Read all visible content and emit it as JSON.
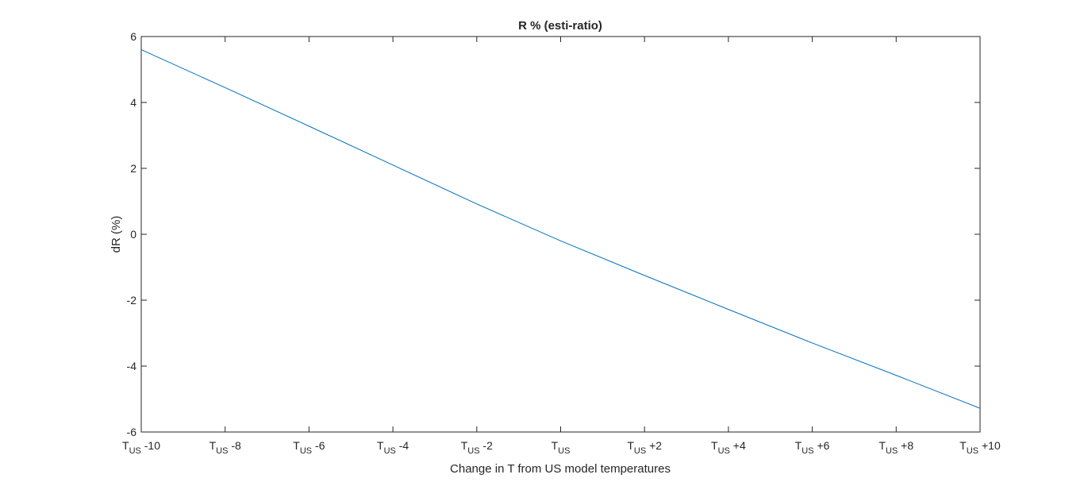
{
  "chart_data": {
    "type": "line",
    "title": "R % (esti-ratio)",
    "xlabel": "Change in T from US model temperatures",
    "ylabel": "dR (%)",
    "xlim": [
      -10,
      10
    ],
    "ylim": [
      -6,
      6
    ],
    "yticks": [
      -6,
      -4,
      -2,
      0,
      2,
      4,
      6
    ],
    "xticks": [
      {
        "value": -10,
        "base": "T",
        "sub": "US",
        "suffix": " -10"
      },
      {
        "value": -8,
        "base": "T",
        "sub": "US",
        "suffix": " -8"
      },
      {
        "value": -6,
        "base": "T",
        "sub": "US",
        "suffix": " -6"
      },
      {
        "value": -4,
        "base": "T",
        "sub": "US",
        "suffix": " -4"
      },
      {
        "value": -2,
        "base": "T",
        "sub": "US",
        "suffix": " -2"
      },
      {
        "value": 0,
        "base": "T",
        "sub": "US",
        "suffix": ""
      },
      {
        "value": 2,
        "base": "T",
        "sub": "US",
        "suffix": " +2"
      },
      {
        "value": 4,
        "base": "T",
        "sub": "US",
        "suffix": " +4"
      },
      {
        "value": 6,
        "base": "T",
        "sub": "US",
        "suffix": " +6"
      },
      {
        "value": 8,
        "base": "T",
        "sub": "US",
        "suffix": " +8"
      },
      {
        "value": 10,
        "base": "T",
        "sub": "US",
        "suffix": " +10"
      }
    ],
    "grid": false,
    "series": [
      {
        "color": "#0072bd",
        "x": [
          -10,
          -8,
          -6,
          -4,
          -2,
          0,
          2,
          4,
          6,
          8,
          10
        ],
        "y": [
          5.6,
          4.45,
          3.28,
          2.1,
          0.92,
          -0.2,
          -1.25,
          -2.28,
          -3.3,
          -4.28,
          -5.28
        ]
      }
    ]
  }
}
